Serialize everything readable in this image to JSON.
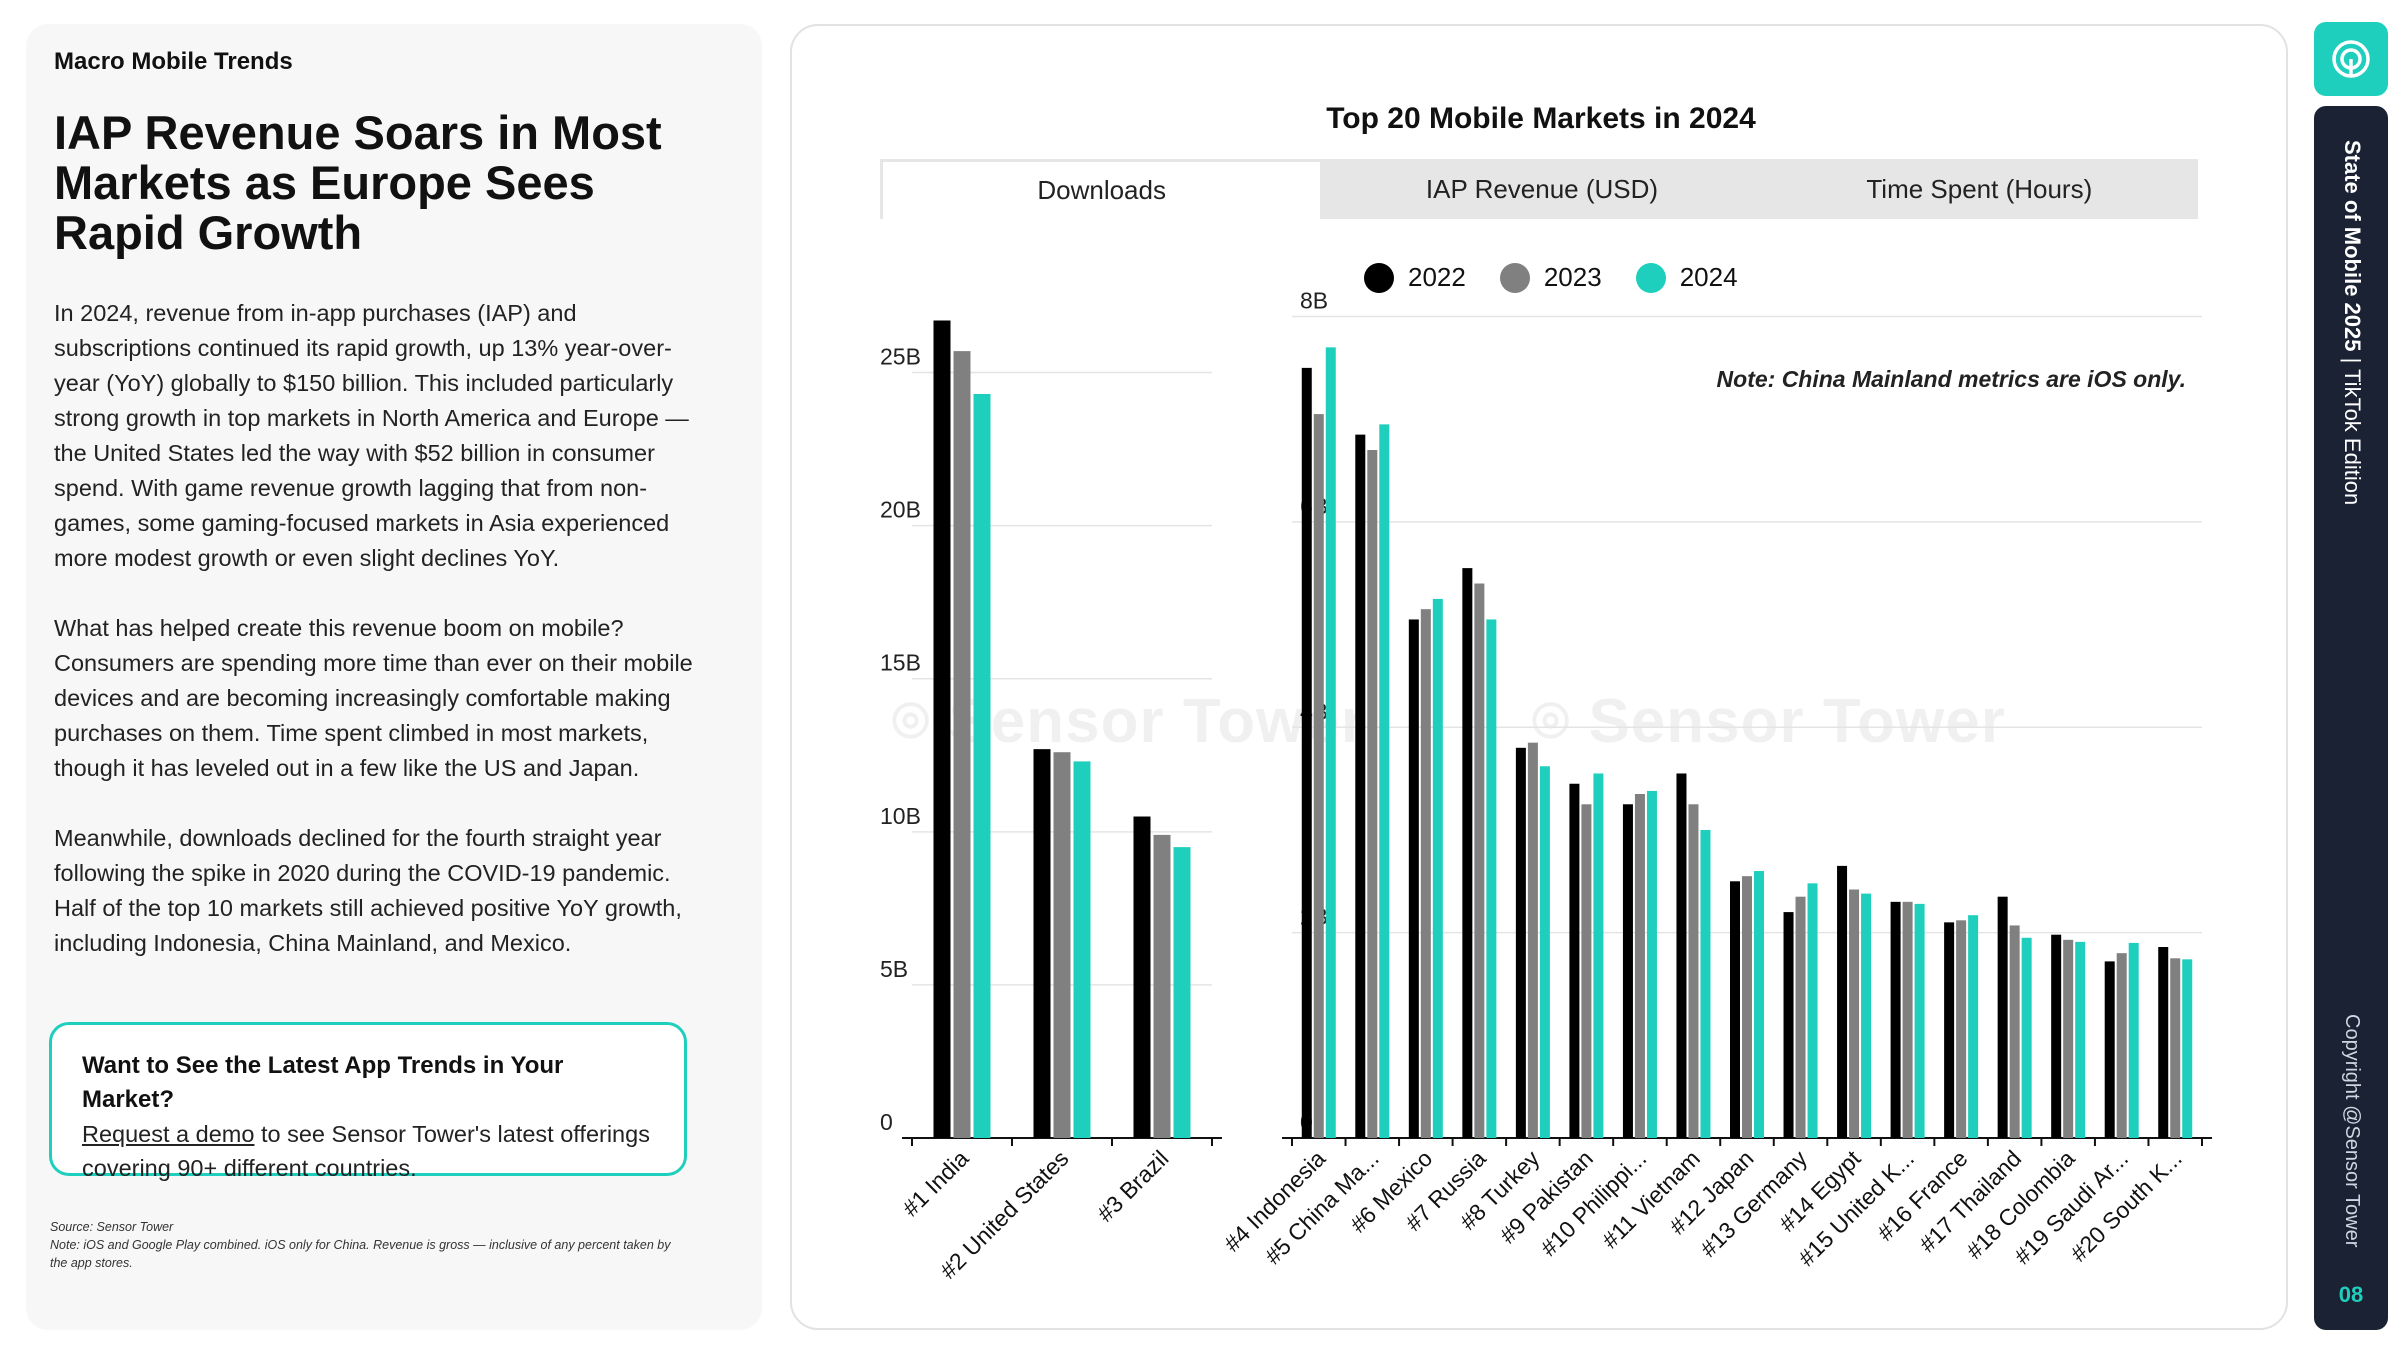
{
  "left": {
    "eyebrow": "Macro Mobile Trends",
    "headline": "IAP Revenue Soars in Most Markets as Europe Sees Rapid Growth",
    "paragraphs": [
      "In 2024, revenue from in-app purchases (IAP) and subscriptions continued its rapid growth, up 13% year-over-year (YoY) globally to $150 billion. This included particularly strong growth in top markets in North America and Europe — the United States led the way with $52 billion in consumer spend. With game revenue growth lagging that from non-games, some gaming-focused markets in Asia experienced more modest growth or even slight declines YoY.",
      "What has helped create this revenue boom on mobile? Consumers are spending more time than ever on their mobile devices and are becoming increasingly comfortable making purchases on them. Time spent climbed in most markets, though it has leveled out in a few like the US and Japan.",
      "Meanwhile, downloads declined for the fourth straight year following the spike in 2020 during the COVID-19 pandemic. Half of the top 10 markets still achieved positive YoY growth, including Indonesia, China Mainland, and Mexico."
    ],
    "cta": {
      "title": "Want to See the Latest App Trends in Your Market?",
      "link": "Request a demo",
      "body": " to see Sensor Tower's latest offerings covering 90+ different countries."
    },
    "footnote_source": "Source: Sensor Tower",
    "footnote_note": "Note: iOS and Google Play combined. iOS only for China. Revenue is gross — inclusive of any percent taken by the app stores."
  },
  "chart_card": {
    "title": "Top 20 Mobile Markets in 2024",
    "tabs": [
      "Downloads",
      "IAP Revenue (USD)",
      "Time Spent (Hours)"
    ],
    "active_tab": 0,
    "note": "Note: China Mainland metrics are iOS only.",
    "watermark": "Sensor Tower"
  },
  "colors": {
    "y2022": "#000000",
    "y2023": "#808080",
    "y2024": "#1fcfbd",
    "accent": "#1fcfbd",
    "rail": "#1a2233"
  },
  "chart_data": [
    {
      "type": "bar",
      "title": "",
      "categories": [
        "#1 India",
        "#2 United States",
        "#3 Brazil"
      ],
      "series": [
        {
          "name": "2022",
          "values": [
            26.7,
            12.7,
            10.5
          ]
        },
        {
          "name": "2023",
          "values": [
            25.7,
            12.6,
            9.9
          ]
        },
        {
          "name": "2024",
          "values": [
            24.3,
            12.3,
            9.5
          ]
        }
      ],
      "ylim": [
        0,
        27.5
      ],
      "yticks": [
        0,
        5,
        10,
        15,
        20,
        25
      ],
      "ytick_labels": [
        "0",
        "5B",
        "10B",
        "15B",
        "20B",
        "25B"
      ],
      "grid": true
    },
    {
      "type": "bar",
      "title": "",
      "categories": [
        "#4 Indonesia",
        "#5 China Ma...",
        "#6 Mexico",
        "#7 Russia",
        "#8 Turkey",
        "#9 Pakistan",
        "#10 Philippi...",
        "#11 Vietnam",
        "#12 Japan",
        "#13 Germany",
        "#14 Egypt",
        "#15 United K...",
        "#16 France",
        "#17 Thailand",
        "#18 Colombia",
        "#19 Saudi Ar...",
        "#20 South K..."
      ],
      "series": [
        {
          "name": "2022",
          "values": [
            7.5,
            6.85,
            5.05,
            5.55,
            3.8,
            3.45,
            3.25,
            3.55,
            2.5,
            2.2,
            2.65,
            2.3,
            2.1,
            2.35,
            1.98,
            1.72,
            1.86
          ]
        },
        {
          "name": "2023",
          "values": [
            7.05,
            6.7,
            5.15,
            5.4,
            3.85,
            3.25,
            3.35,
            3.25,
            2.55,
            2.35,
            2.42,
            2.3,
            2.12,
            2.07,
            1.93,
            1.8,
            1.75
          ]
        },
        {
          "name": "2024",
          "values": [
            7.7,
            6.95,
            5.25,
            5.05,
            3.62,
            3.55,
            3.38,
            3.0,
            2.6,
            2.48,
            2.38,
            2.28,
            2.17,
            1.95,
            1.91,
            1.9,
            1.74
          ]
        }
      ],
      "ylim": [
        0,
        8.2
      ],
      "yticks": [
        0,
        2,
        4,
        6,
        8
      ],
      "ytick_labels": [
        "0",
        "2B",
        "4B",
        "6B",
        "8B"
      ],
      "grid": true
    }
  ],
  "rail": {
    "title_bold": "State of Mobile 2025",
    "title_rest": " | TikTok Edition",
    "copyright": "Copyright @Sensor Tower",
    "page": "08"
  }
}
